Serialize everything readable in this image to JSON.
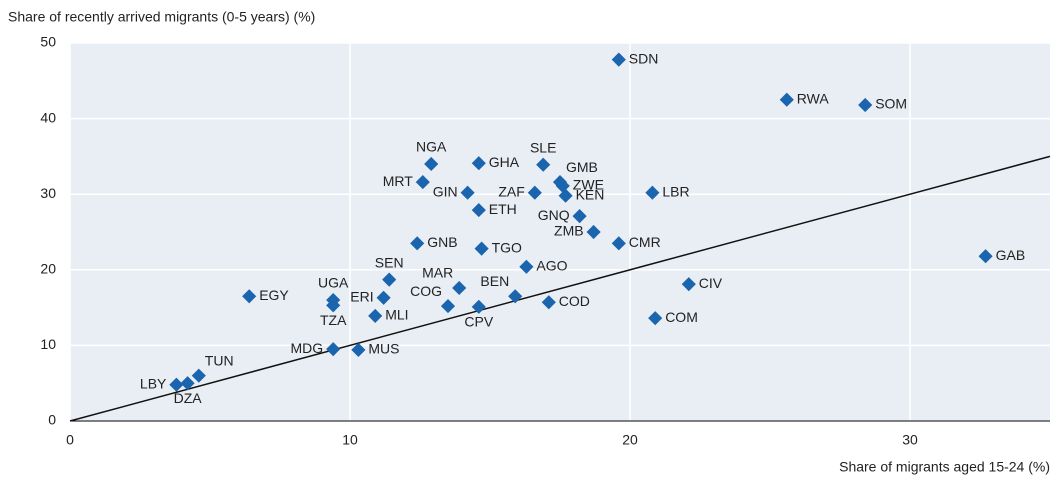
{
  "chart_data": {
    "type": "scatter",
    "ylabel": "Share of recently arrived migrants (0-5 years) (%)",
    "xlabel": "Share of migrants aged 15-24 (%)",
    "xlim": [
      0,
      35
    ],
    "ylim": [
      0,
      50
    ],
    "xticks": [
      0,
      10,
      20,
      30
    ],
    "yticks": [
      0,
      10,
      20,
      30,
      40,
      50
    ],
    "grid": true,
    "series": [
      {
        "color": "#1a65ae",
        "labels": [
          "SDN",
          "RWA",
          "SOM",
          "NGA",
          "GHA",
          "SLE",
          "GMB",
          "MRT",
          "ZWE",
          "GIN",
          "ZAF",
          "LBR",
          "KEN",
          "ETH",
          "GNQ",
          "ZMB",
          "GNB",
          "CMR",
          "TGO",
          "GAB",
          "AGO",
          "SEN",
          "CIV",
          "MAR",
          "EGY",
          "BEN",
          "UGA",
          "ERI",
          "COD",
          "COG",
          "TZA",
          "CPV",
          "MLI",
          "COM",
          "MDG",
          "MUS",
          "TUN",
          "DZA",
          "LBY"
        ],
        "x": [
          19.6,
          25.6,
          28.4,
          12.9,
          14.6,
          16.9,
          17.5,
          12.6,
          17.6,
          14.2,
          16.6,
          20.8,
          17.7,
          14.6,
          18.2,
          18.7,
          12.4,
          19.6,
          14.7,
          32.7,
          16.3,
          11.4,
          22.1,
          13.9,
          6.4,
          15.9,
          9.4,
          11.2,
          17.1,
          13.5,
          9.4,
          14.6,
          10.9,
          20.9,
          9.4,
          10.3,
          4.6,
          4.2,
          3.8
        ],
        "values": [
          47.8,
          42.5,
          41.8,
          34.0,
          34.1,
          33.9,
          31.6,
          31.6,
          31.1,
          30.2,
          30.2,
          30.2,
          29.8,
          27.9,
          27.1,
          25.0,
          23.5,
          23.5,
          22.8,
          21.8,
          20.4,
          18.7,
          18.1,
          17.6,
          16.5,
          16.5,
          16.0,
          16.3,
          15.7,
          15.2,
          15.3,
          15.1,
          13.9,
          13.6,
          9.5,
          9.4,
          6.0,
          5.0,
          4.8
        ]
      }
    ]
  }
}
